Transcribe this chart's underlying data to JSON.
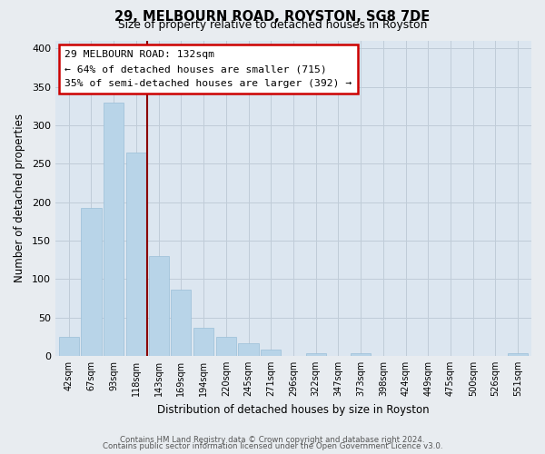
{
  "title": "29, MELBOURN ROAD, ROYSTON, SG8 7DE",
  "subtitle": "Size of property relative to detached houses in Royston",
  "xlabel": "Distribution of detached houses by size in Royston",
  "ylabel": "Number of detached properties",
  "bar_labels": [
    "42sqm",
    "67sqm",
    "93sqm",
    "118sqm",
    "143sqm",
    "169sqm",
    "194sqm",
    "220sqm",
    "245sqm",
    "271sqm",
    "296sqm",
    "322sqm",
    "347sqm",
    "373sqm",
    "398sqm",
    "424sqm",
    "449sqm",
    "475sqm",
    "500sqm",
    "526sqm",
    "551sqm"
  ],
  "bar_values": [
    25,
    193,
    330,
    265,
    130,
    86,
    37,
    25,
    17,
    8,
    0,
    4,
    0,
    4,
    0,
    0,
    0,
    0,
    0,
    0,
    3
  ],
  "bar_color": "#b8d4e8",
  "bar_edge_color": "#9bbfd8",
  "vline_x": 3.5,
  "vline_color": "#8b0000",
  "annotation_title": "29 MELBOURN ROAD: 132sqm",
  "annotation_line1": "← 64% of detached houses are smaller (715)",
  "annotation_line2": "35% of semi-detached houses are larger (392) →",
  "annotation_box_color": "#ffffff",
  "annotation_box_edge": "#cc0000",
  "ylim": [
    0,
    410
  ],
  "yticks": [
    0,
    50,
    100,
    150,
    200,
    250,
    300,
    350,
    400
  ],
  "footer1": "Contains HM Land Registry data © Crown copyright and database right 2024.",
  "footer2": "Contains public sector information licensed under the Open Government Licence v3.0.",
  "bg_color": "#e8ecf0",
  "plot_bg_color": "#dce6f0",
  "grid_color": "#c0ccd8"
}
